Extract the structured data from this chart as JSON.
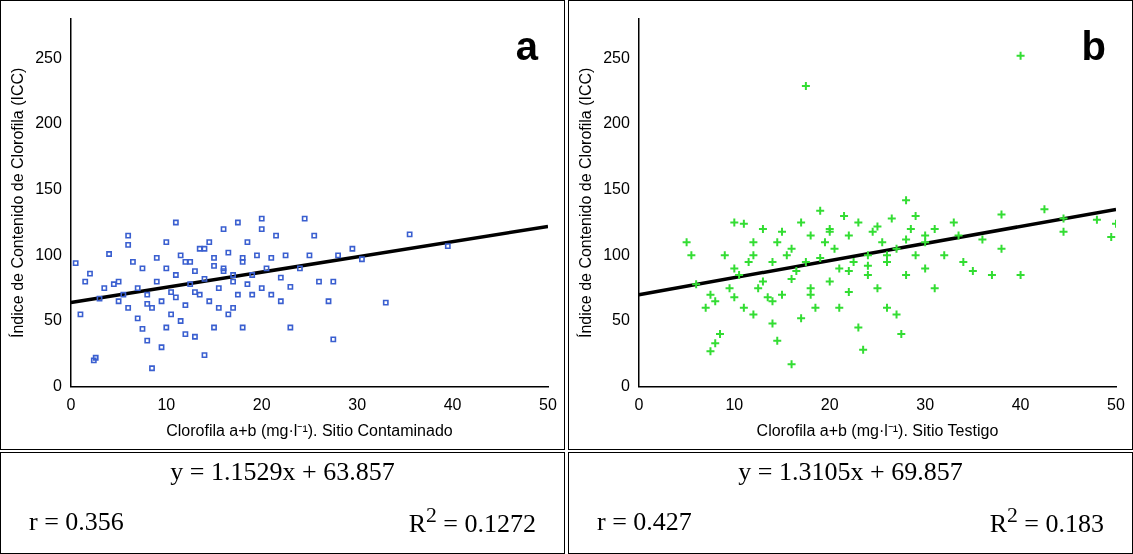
{
  "chart_data": [
    {
      "type": "scatter",
      "xlabel": "Clorofila a+b (mg·l⁻¹). Sitio Contaminado",
      "ylabel": "Índice de Contenido de Clorofila (ICC)",
      "annotations": [
        "a",
        "y = 1.1529x + 63.857",
        "r = 0.356",
        "R$^{2}$ = 0.1272"
      ],
      "xlim": [
        0,
        50
      ],
      "xticks": [
        0,
        10,
        20,
        30,
        40,
        50
      ],
      "ylim": [
        0,
        280
      ],
      "yticks": [
        0,
        50,
        100,
        150,
        200,
        250
      ],
      "grid": false,
      "legend": false,
      "series": [
        {
          "marker": "square",
          "color": "#3a5fd0",
          "x": [
            0.5,
            1,
            1.5,
            2,
            2.4,
            2.6,
            3,
            3.5,
            4,
            4.5,
            5,
            5,
            5.5,
            6,
            6,
            6.5,
            7,
            7,
            7.5,
            7.5,
            8,
            8,
            8.5,
            8.5,
            9,
            9,
            9.5,
            9.5,
            10,
            10,
            10.5,
            10.5,
            11,
            11,
            11.5,
            11.5,
            12,
            12,
            12.5,
            12.5,
            13,
            13,
            13.5,
            13.5,
            14,
            14,
            14.5,
            14.5,
            15,
            15,
            15.5,
            15.5,
            16,
            16,
            16.5,
            16.5,
            17,
            17,
            17.5,
            17.5,
            18,
            18,
            18.5,
            18.5,
            19,
            19,
            19.5,
            20,
            20,
            20.5,
            21,
            21,
            21.5,
            22,
            22,
            22.5,
            23,
            23,
            24,
            24.5,
            25,
            25.5,
            26,
            27,
            27.5,
            27.5,
            28,
            29.5,
            30.5,
            33,
            35.5,
            39.5,
            6,
            8,
            10,
            12,
            14,
            16,
            18,
            20,
            11,
            13,
            15,
            17
          ],
          "values": [
            94,
            55,
            80,
            86,
            20,
            22,
            67,
            75,
            101,
            78,
            65,
            80,
            70,
            115,
            60,
            95,
            52,
            75,
            44,
            90,
            35,
            70,
            14,
            60,
            98,
            80,
            30,
            65,
            45,
            90,
            72,
            55,
            125,
            85,
            50,
            100,
            62,
            40,
            78,
            95,
            38,
            88,
            105,
            70,
            24,
            82,
            110,
            65,
            45,
            98,
            75,
            60,
            120,
            88,
            55,
            102,
            60,
            85,
            125,
            70,
            45,
            95,
            78,
            110,
            70,
            85,
            100,
            128,
            75,
            90,
            98,
            70,
            115,
            83,
            65,
            100,
            76,
            45,
            90,
            128,
            100,
            115,
            80,
            65,
            36,
            80,
            100,
            105,
            97,
            64,
            116,
            107,
            108,
            63,
            110,
            95,
            105,
            90,
            98,
            120,
            68,
            72,
            92,
            80
          ]
        },
        {
          "type": "line",
          "marker": "none",
          "color": "#000000",
          "x": [
            0,
            50
          ],
          "values": [
            64,
            122
          ]
        }
      ]
    },
    {
      "type": "scatter",
      "xlabel": "Clorofila a+b (mg·l⁻¹). Sitio Testigo",
      "ylabel": "Índice de Contenido de Clorofila (ICC)",
      "annotations": [
        "b",
        "y = 1.3105x + 69.857",
        "r = 0.427",
        "R$^{2}$ = 0.183"
      ],
      "xlim": [
        0,
        50
      ],
      "xticks": [
        0,
        10,
        20,
        30,
        40,
        50
      ],
      "ylim": [
        0,
        280
      ],
      "yticks": [
        0,
        50,
        100,
        150,
        200,
        250
      ],
      "grid": false,
      "legend": false,
      "series": [
        {
          "marker": "cross",
          "color": "#33dd33",
          "x": [
            5,
            5.5,
            6,
            7,
            7.5,
            7.5,
            8,
            8,
            8.5,
            9,
            9.5,
            10,
            10,
            10.5,
            11,
            11,
            11.5,
            12,
            12,
            12.5,
            13,
            13,
            13.5,
            14,
            14,
            14.5,
            14.5,
            15,
            15,
            15.5,
            16,
            16,
            16.5,
            17,
            17,
            17.5,
            17.5,
            18,
            18,
            18.5,
            19,
            19,
            19.5,
            20,
            20,
            20.5,
            21,
            21,
            21.5,
            22,
            22,
            22.5,
            23,
            23,
            23.5,
            24,
            24,
            24.5,
            25,
            25,
            25.5,
            26,
            26,
            26.5,
            27,
            27,
            27.5,
            28,
            28,
            28.5,
            29,
            29,
            30,
            30,
            31,
            31,
            32,
            33,
            33.5,
            34,
            35,
            36,
            37,
            38,
            38,
            40,
            40,
            42.5,
            44.5,
            44.5,
            48,
            49.5,
            50,
            12,
            16,
            20,
            24,
            28,
            18,
            22,
            26,
            30,
            14,
            10
          ],
          "values": [
            110,
            100,
            78,
            60,
            27,
            70,
            33,
            65,
            40,
            100,
            75,
            125,
            68,
            85,
            124,
            60,
            95,
            55,
            110,
            75,
            80,
            120,
            68,
            95,
            48,
            110,
            35,
            118,
            70,
            100,
            17,
            105,
            88,
            125,
            52,
            229,
            95,
            75,
            115,
            60,
            98,
            134,
            110,
            80,
            120,
            105,
            60,
            90,
            130,
            72,
            115,
            95,
            125,
            45,
            28,
            100,
            85,
            118,
            122,
            75,
            110,
            95,
            60,
            128,
            55,
            105,
            40,
            142,
            85,
            120,
            100,
            130,
            90,
            110,
            120,
            75,
            100,
            125,
            115,
            95,
            88,
            112,
            85,
            105,
            131,
            85,
            252,
            135,
            118,
            128,
            127,
            114,
            124,
            100,
            82,
            118,
            92,
            112,
            70,
            88,
            100,
            115,
            65,
            90
          ]
        },
        {
          "type": "line",
          "marker": "none",
          "color": "#000000",
          "x": [
            0,
            50
          ],
          "values": [
            70,
            135
          ]
        }
      ]
    }
  ]
}
